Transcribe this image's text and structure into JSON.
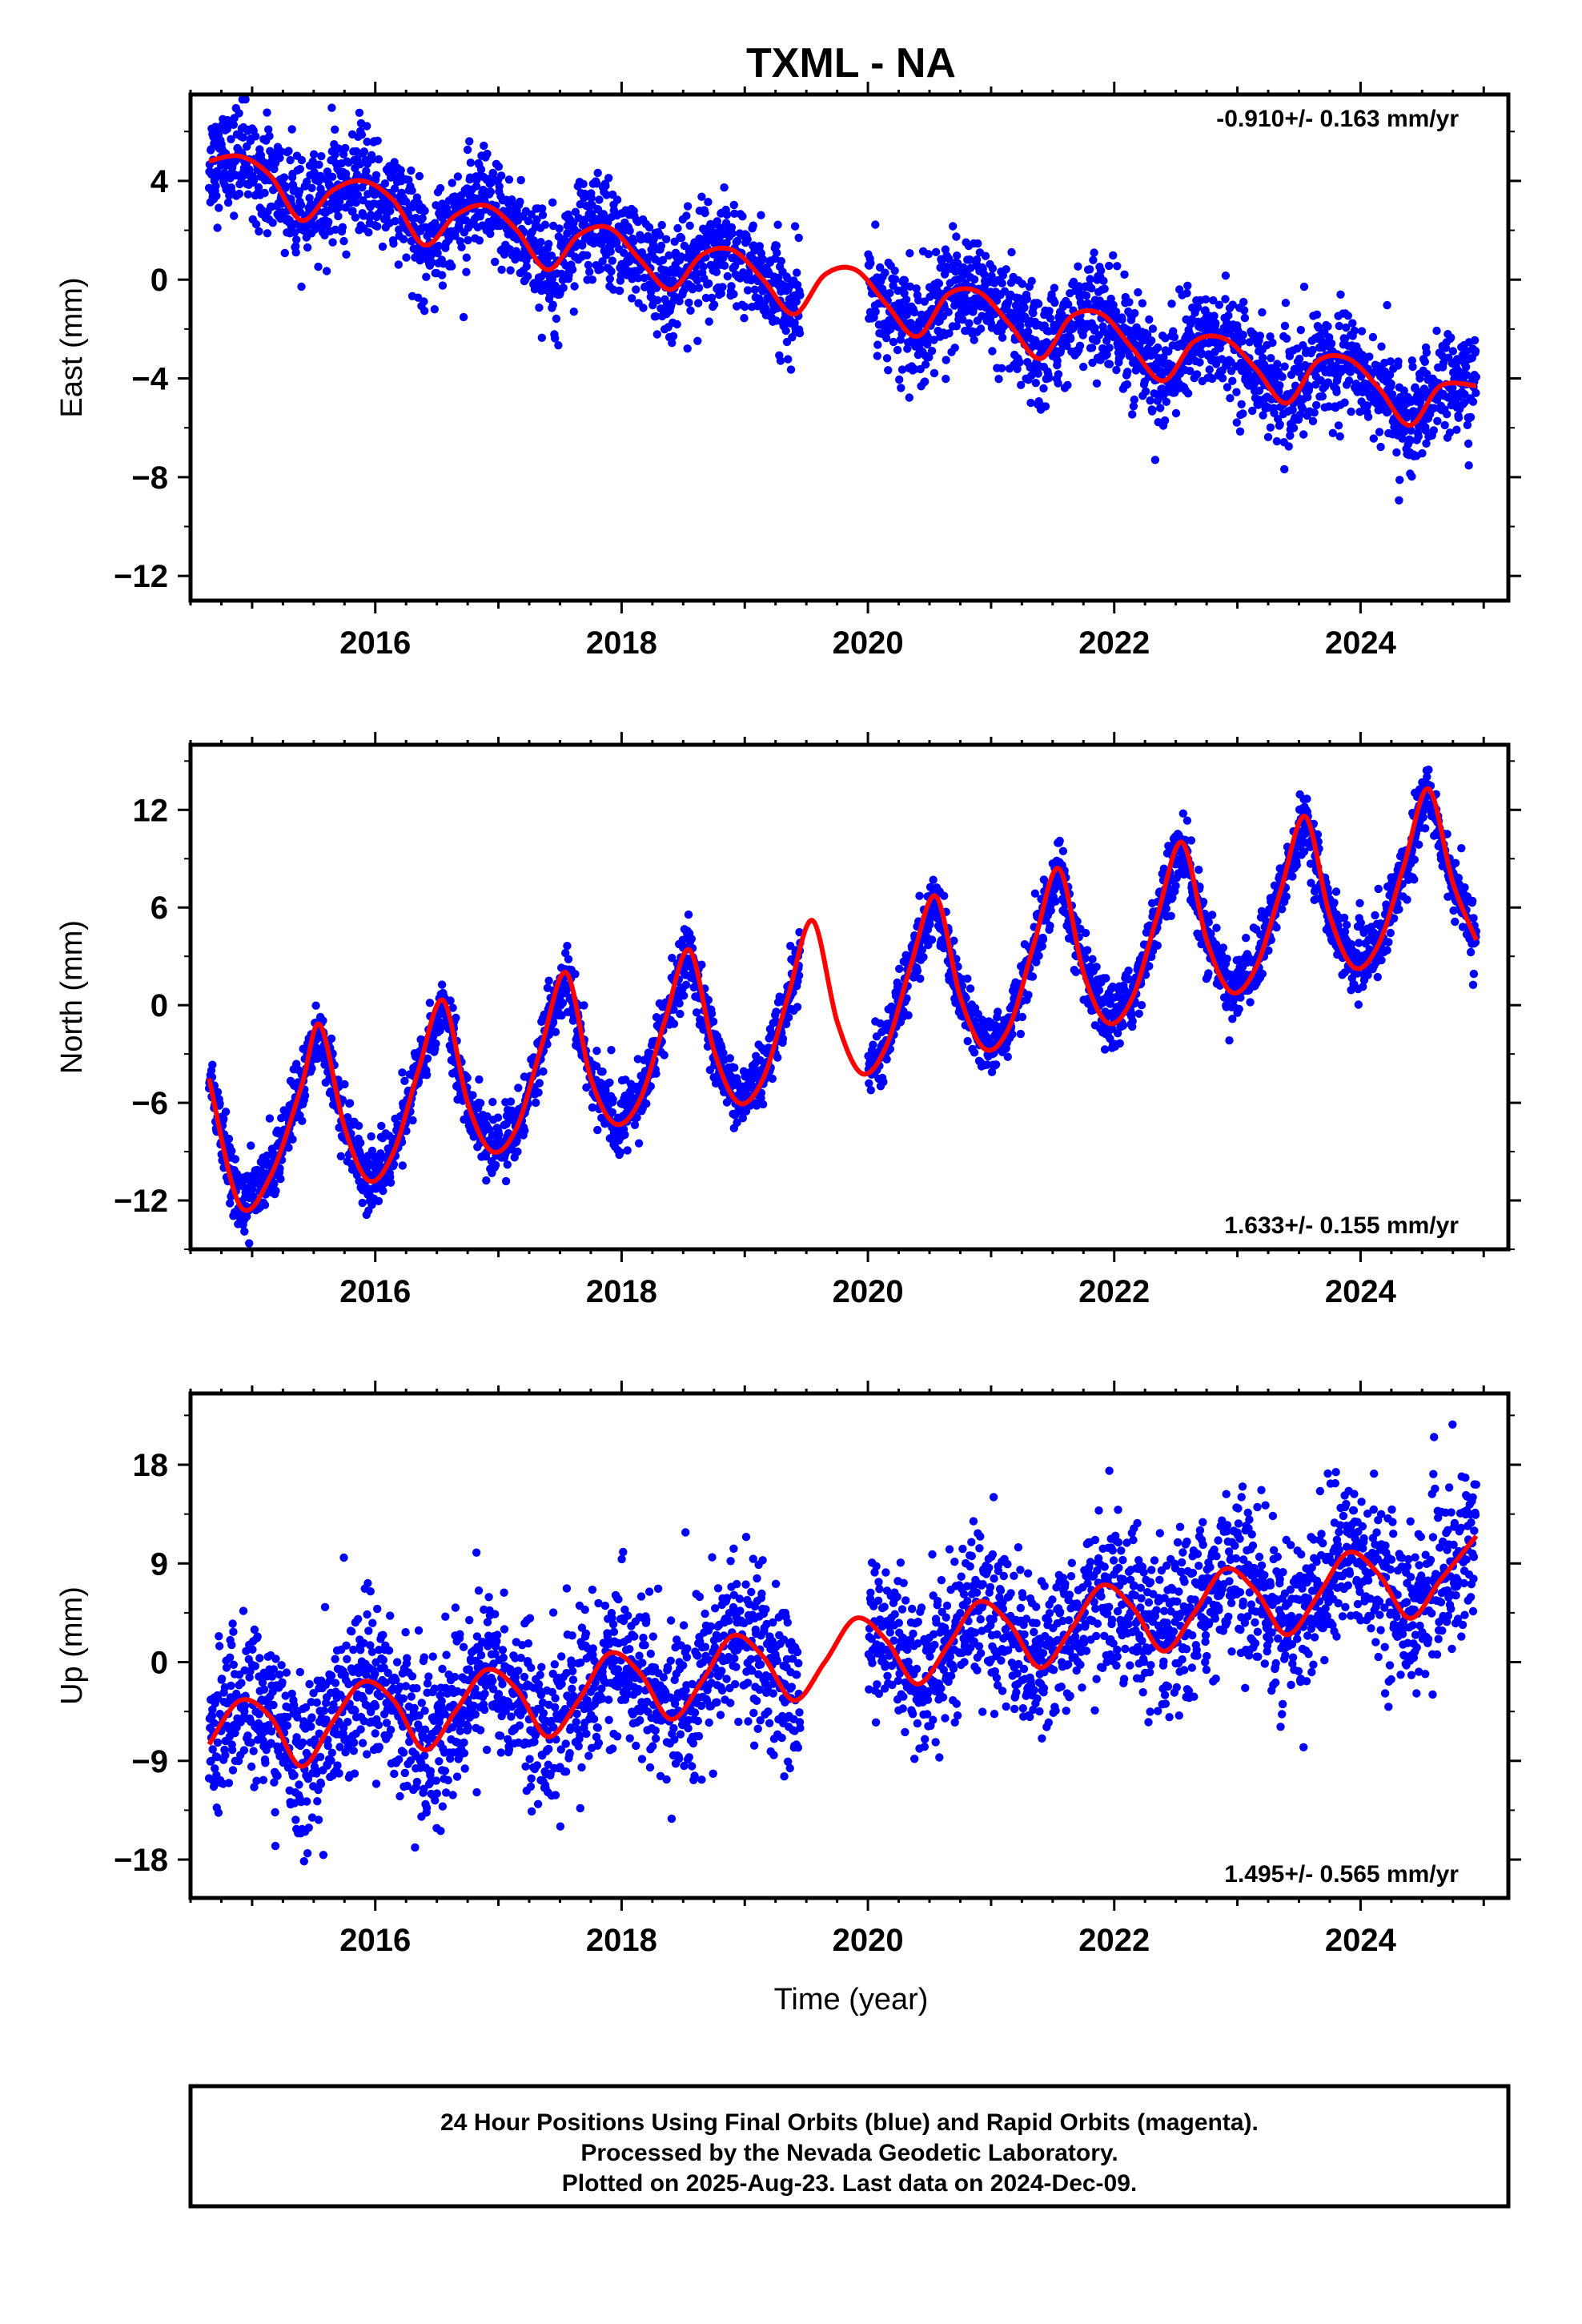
{
  "page": {
    "title": "TXML - NA",
    "xlabel": "Time (year)",
    "footer_lines": [
      "24 Hour Positions Using Final Orbits (blue) and Rapid Orbits (magenta).",
      "Processed by the Nevada Geodetic Laboratory.",
      "Plotted on 2025-Aug-23. Last data on 2024-Dec-09."
    ]
  },
  "colors": {
    "observations": "#0000ff",
    "model": "#ff0000",
    "frame": "#000000"
  },
  "chart_data": [
    {
      "type": "scatter",
      "component": "east",
      "ylabel": "East (mm)",
      "rate_label": "-0.910+/- 0.163 mm/yr",
      "rate_position": "top-right",
      "xlim": [
        2014.5,
        2025.2
      ],
      "ylim": [
        -13.0,
        7.5
      ],
      "xticks": [
        2016,
        2018,
        2020,
        2022,
        2024
      ],
      "xtick_labels": [
        "2016",
        "2018",
        "2020",
        "2022",
        "2024"
      ],
      "yticks": [
        4,
        0,
        -4,
        -8,
        -12
      ],
      "ytick_labels": [
        "4",
        "0",
        "−4",
        "−8",
        "−12"
      ],
      "grid": false,
      "data_range": [
        2014.65,
        2024.94
      ],
      "data_gap": [
        2019.45,
        2020.0
      ],
      "model": {
        "x": [
          2014.65,
          2014.9,
          2015.15,
          2015.4,
          2015.65,
          2015.9,
          2016.15,
          2016.4,
          2016.65,
          2016.9,
          2017.15,
          2017.4,
          2017.65,
          2017.9,
          2018.15,
          2018.4,
          2018.65,
          2018.9,
          2019.15,
          2019.4,
          2019.65,
          2019.9,
          2020.15,
          2020.4,
          2020.65,
          2020.9,
          2021.15,
          2021.4,
          2021.65,
          2021.9,
          2022.15,
          2022.4,
          2022.65,
          2022.9,
          2023.15,
          2023.4,
          2023.65,
          2023.9,
          2024.15,
          2024.4,
          2024.65,
          2024.94
        ],
        "y": [
          4.8,
          5.0,
          4.2,
          2.4,
          3.6,
          4.0,
          3.2,
          1.4,
          2.6,
          3.0,
          2.0,
          0.4,
          1.8,
          2.1,
          0.8,
          -0.4,
          1.0,
          1.2,
          0.0,
          -1.4,
          0.2,
          0.4,
          -1.0,
          -2.3,
          -0.6,
          -0.5,
          -1.8,
          -3.2,
          -1.5,
          -1.4,
          -2.8,
          -4.1,
          -2.5,
          -2.4,
          -3.6,
          -5.0,
          -3.3,
          -3.2,
          -4.4,
          -5.9,
          -4.3,
          -4.3
        ]
      }
    },
    {
      "type": "scatter",
      "component": "north",
      "ylabel": "North (mm)",
      "rate_label": "1.633+/- 0.155 mm/yr",
      "rate_position": "bottom-right",
      "xlim": [
        2014.5,
        2025.2
      ],
      "ylim": [
        -15.0,
        16.0
      ],
      "xticks": [
        2016,
        2018,
        2020,
        2022,
        2024
      ],
      "xtick_labels": [
        "2016",
        "2018",
        "2020",
        "2022",
        "2024"
      ],
      "yticks": [
        12,
        6,
        0,
        -6,
        -12
      ],
      "ytick_labels": [
        "12",
        "6",
        "0",
        "−6",
        "−12"
      ],
      "grid": false,
      "data_range": [
        2014.65,
        2024.94
      ],
      "data_gap": [
        2019.45,
        2020.0
      ],
      "model": {
        "x": [
          2014.65,
          2014.9,
          2015.15,
          2015.4,
          2015.55,
          2015.75,
          2015.95,
          2016.15,
          2016.35,
          2016.55,
          2016.75,
          2016.95,
          2017.15,
          2017.35,
          2017.55,
          2017.75,
          2017.95,
          2018.15,
          2018.35,
          2018.55,
          2018.75,
          2018.95,
          2019.15,
          2019.35,
          2019.55,
          2019.75,
          2019.95,
          2020.15,
          2020.35,
          2020.55,
          2020.75,
          2020.95,
          2021.15,
          2021.35,
          2021.55,
          2021.75,
          2021.95,
          2022.15,
          2022.35,
          2022.55,
          2022.75,
          2022.95,
          2023.15,
          2023.35,
          2023.55,
          2023.75,
          2023.95,
          2024.15,
          2024.35,
          2024.55,
          2024.75,
          2024.94
        ],
        "y": [
          -4.5,
          -12.3,
          -10.5,
          -5.0,
          -1.2,
          -7.5,
          -10.8,
          -9.0,
          -4.0,
          0.3,
          -6.0,
          -9.0,
          -7.5,
          -2.5,
          2.0,
          -4.5,
          -7.3,
          -5.8,
          -1.0,
          3.4,
          -2.8,
          -6.0,
          -4.5,
          0.5,
          5.2,
          -1.0,
          -4.2,
          -2.5,
          2.5,
          6.7,
          0.5,
          -2.7,
          -1.3,
          3.8,
          8.4,
          2.0,
          -1.1,
          0.5,
          5.5,
          10.0,
          4.0,
          0.8,
          2.3,
          7.0,
          11.6,
          5.5,
          2.3,
          3.8,
          8.5,
          13.3,
          7.5,
          4.0
        ]
      }
    },
    {
      "type": "scatter",
      "component": "up",
      "ylabel": "Up (mm)",
      "rate_label": "1.495+/- 0.565 mm/yr",
      "rate_position": "bottom-right",
      "xlim": [
        2014.5,
        2025.2
      ],
      "ylim": [
        -21.5,
        24.5
      ],
      "xticks": [
        2016,
        2018,
        2020,
        2022,
        2024
      ],
      "xtick_labels": [
        "2016",
        "2018",
        "2020",
        "2022",
        "2024"
      ],
      "yticks": [
        18,
        9,
        0,
        -9,
        -18
      ],
      "ytick_labels": [
        "18",
        "9",
        "0",
        "−9",
        "−18"
      ],
      "grid": false,
      "data_range": [
        2014.65,
        2024.94
      ],
      "data_gap": [
        2019.45,
        2020.0
      ],
      "model": {
        "x": [
          2014.65,
          2014.9,
          2015.15,
          2015.4,
          2015.65,
          2015.9,
          2016.15,
          2016.4,
          2016.65,
          2016.9,
          2017.15,
          2017.4,
          2017.65,
          2017.9,
          2018.15,
          2018.4,
          2018.65,
          2018.9,
          2019.15,
          2019.4,
          2019.65,
          2019.9,
          2020.15,
          2020.4,
          2020.65,
          2020.9,
          2021.15,
          2021.4,
          2021.65,
          2021.9,
          2022.15,
          2022.4,
          2022.65,
          2022.9,
          2023.15,
          2023.4,
          2023.65,
          2023.9,
          2024.15,
          2024.4,
          2024.65,
          2024.94
        ],
        "y": [
          -7.5,
          -3.5,
          -5.0,
          -9.5,
          -5.5,
          -1.8,
          -3.5,
          -8.0,
          -4.5,
          -0.7,
          -2.5,
          -6.8,
          -3.5,
          0.8,
          -1.0,
          -5.2,
          -1.8,
          2.4,
          0.5,
          -3.5,
          0.0,
          4.0,
          2.0,
          -2.0,
          1.5,
          5.5,
          3.5,
          -0.5,
          3.0,
          7.0,
          5.0,
          1.0,
          4.5,
          8.5,
          6.5,
          2.5,
          6.0,
          10.0,
          8.0,
          4.0,
          7.5,
          11.5
        ]
      }
    }
  ]
}
